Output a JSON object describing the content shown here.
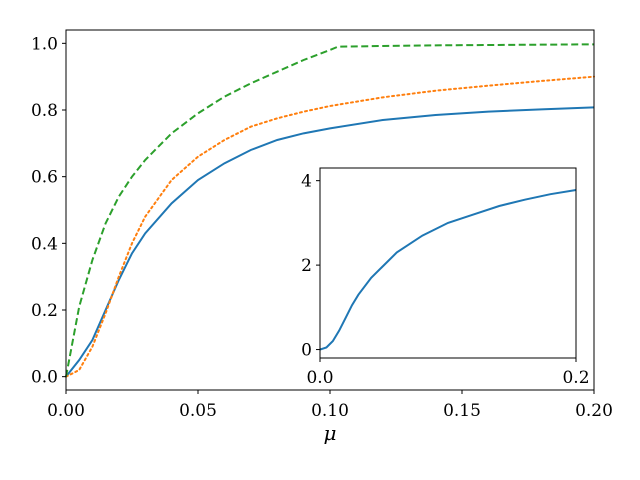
{
  "chart_data": [
    {
      "type": "line",
      "xlabel": "μ",
      "ylabel": "",
      "title": "",
      "xlim": [
        0,
        0.2
      ],
      "ylim": [
        -0.04,
        1.04
      ],
      "xticks": [
        "0.00",
        "0.05",
        "0.10",
        "0.15",
        "0.20"
      ],
      "yticks": [
        "0.0",
        "0.2",
        "0.4",
        "0.6",
        "0.8",
        "1.0"
      ],
      "grid": false,
      "series": [
        {
          "color": "#1f77b4",
          "style": "solid",
          "x": [
            0,
            0.005,
            0.01,
            0.015,
            0.02,
            0.025,
            0.03,
            0.04,
            0.05,
            0.06,
            0.07,
            0.08,
            0.09,
            0.1,
            0.12,
            0.14,
            0.16,
            0.18,
            0.2
          ],
          "y": [
            0.0,
            0.05,
            0.11,
            0.2,
            0.29,
            0.37,
            0.43,
            0.52,
            0.59,
            0.64,
            0.68,
            0.71,
            0.73,
            0.745,
            0.77,
            0.785,
            0.795,
            0.802,
            0.808
          ]
        },
        {
          "color": "#ff7f0e",
          "style": "dotted",
          "x": [
            0,
            0.005,
            0.01,
            0.015,
            0.02,
            0.025,
            0.03,
            0.04,
            0.05,
            0.06,
            0.07,
            0.08,
            0.09,
            0.1,
            0.12,
            0.14,
            0.16,
            0.18,
            0.2
          ],
          "y": [
            0.0,
            0.02,
            0.09,
            0.19,
            0.3,
            0.4,
            0.48,
            0.59,
            0.66,
            0.71,
            0.75,
            0.775,
            0.795,
            0.812,
            0.838,
            0.858,
            0.873,
            0.887,
            0.9
          ]
        },
        {
          "color": "#2ca02c",
          "style": "dashed",
          "x": [
            0,
            0.005,
            0.01,
            0.015,
            0.02,
            0.025,
            0.03,
            0.04,
            0.05,
            0.06,
            0.07,
            0.08,
            0.09,
            0.1,
            0.103,
            0.12,
            0.14,
            0.16,
            0.18,
            0.2
          ],
          "y": [
            0.0,
            0.21,
            0.35,
            0.46,
            0.54,
            0.6,
            0.65,
            0.73,
            0.79,
            0.84,
            0.88,
            0.915,
            0.95,
            0.98,
            0.99,
            0.992,
            0.994,
            0.995,
            0.996,
            0.997
          ]
        }
      ]
    },
    {
      "type": "line",
      "title": "",
      "xlabel": "",
      "ylabel": "",
      "xlim": [
        0,
        0.2
      ],
      "ylim": [
        -0.2,
        4.3
      ],
      "xticks": [
        "0.0",
        "0.2"
      ],
      "yticks": [
        "0",
        "2",
        "4"
      ],
      "grid": false,
      "series": [
        {
          "color": "#1f77b4",
          "style": "solid",
          "x": [
            0,
            0.005,
            0.01,
            0.015,
            0.02,
            0.025,
            0.03,
            0.04,
            0.05,
            0.06,
            0.08,
            0.1,
            0.12,
            0.14,
            0.16,
            0.18,
            0.2
          ],
          "y": [
            0.0,
            0.05,
            0.2,
            0.45,
            0.75,
            1.05,
            1.3,
            1.7,
            2.0,
            2.3,
            2.7,
            3.0,
            3.2,
            3.4,
            3.55,
            3.68,
            3.78
          ]
        }
      ]
    }
  ]
}
